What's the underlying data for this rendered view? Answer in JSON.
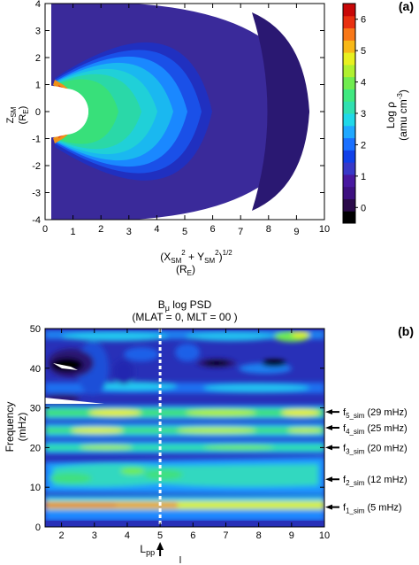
{
  "chart_data": [
    {
      "type": "heatmap",
      "panel_label": "(a)",
      "ylabel": [
        "Z",
        "SM",
        "(R",
        "E",
        ")"
      ],
      "xlabel_line1": [
        "(X",
        "SM",
        "2",
        " + Y",
        "SM",
        "2",
        ")",
        "1/2"
      ],
      "xlabel_line2": [
        "(R",
        "E",
        ")"
      ],
      "xlim": [
        0,
        10
      ],
      "ylim": [
        -4,
        4
      ],
      "xticks": [
        "0",
        "1",
        "2",
        "3",
        "4",
        "5",
        "6",
        "7",
        "8",
        "9",
        "10"
      ],
      "yticks": [
        "4",
        "3",
        "2",
        "1",
        "0",
        "-1",
        "-2",
        "-3",
        "-4"
      ],
      "colorbar": {
        "label": "Log ρ",
        "unit": "(amu cm",
        "unit_sup": "-3",
        "unit_end": ")",
        "ticks": [
          "6",
          "5",
          "4",
          "3",
          "2",
          "1",
          "0"
        ],
        "range": [
          -0.5,
          6.5
        ],
        "colors": [
          "#000000",
          "#2a0a4a",
          "#3d1080",
          "#4818a0",
          "#3838c8",
          "#1040e8",
          "#1a70ff",
          "#20a8ff",
          "#20d8e8",
          "#30e0b0",
          "#40e880",
          "#70ec50",
          "#b0f030",
          "#e8f020",
          "#f8b818",
          "#f87818",
          "#e83010",
          "#c80808"
        ]
      }
    },
    {
      "type": "heatmap",
      "panel_label": "(b)",
      "title_line1": [
        "B",
        "μ",
        " log PSD"
      ],
      "title_line2": "(MLAT = 0, MLT = 00 )",
      "ylabel": [
        "Frequency",
        "(mHz)"
      ],
      "xlim": [
        1.5,
        10
      ],
      "ylim": [
        0,
        50
      ],
      "xticks": [
        "2",
        "3",
        "4",
        "5",
        "6",
        "7",
        "8",
        "9",
        "10"
      ],
      "yticks": [
        "50",
        "40",
        "30",
        "20",
        "10",
        "0"
      ],
      "lpp_label": [
        "L",
        "pp"
      ],
      "lpp_value": 5,
      "annotations": [
        {
          "base": "f",
          "sub": "5_sim",
          "text": "(29 mHz)",
          "freq": 29
        },
        {
          "base": "f",
          "sub": "4_sim",
          "text": "(25 mHz)",
          "freq": 25
        },
        {
          "base": "f",
          "sub": "3_sim",
          "text": "(20 mHz)",
          "freq": 20
        },
        {
          "base": "f",
          "sub": "2_sim",
          "text": "(12 mHz)",
          "freq": 12
        },
        {
          "base": "f",
          "sub": "1_sim",
          "text": "(5 mHz)",
          "freq": 5
        }
      ],
      "bottom_mark": "l"
    }
  ]
}
